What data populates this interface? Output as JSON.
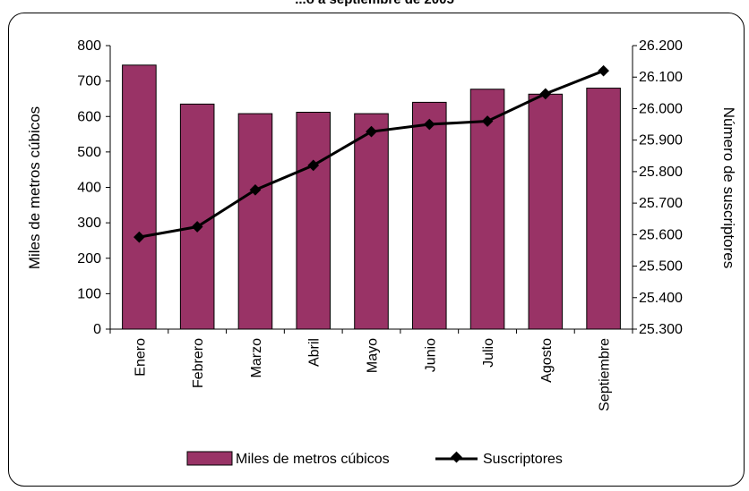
{
  "chart_data": {
    "type": "bar",
    "title": "...o a septiembre de 2005",
    "categories": [
      "Enero",
      "Febrero",
      "Marzo",
      "Abril",
      "Mayo",
      "Junio",
      "Julio",
      "Agosto",
      "Septiembre"
    ],
    "series": [
      {
        "name": "Miles de metros cúbicos",
        "type": "bar",
        "axis": "left",
        "color": "#993366",
        "values": [
          745,
          635,
          608,
          612,
          608,
          640,
          677,
          663,
          680
        ]
      },
      {
        "name": "Suscriptores",
        "type": "line",
        "axis": "right",
        "color": "#000000",
        "values": [
          25592,
          25625,
          25742,
          25820,
          25927,
          25950,
          25960,
          26047,
          26120
        ]
      }
    ],
    "ylabel": "Miles de metros cúbicos",
    "ylabel_right": "Número de suscriptores",
    "xlabel": "",
    "ylim": [
      0,
      800
    ],
    "ylim_right": [
      25300,
      26200
    ],
    "yticks": [
      "0",
      "100",
      "200",
      "300",
      "400",
      "500",
      "600",
      "700",
      "800"
    ],
    "yticks_right": [
      "25.300",
      "25.400",
      "25.500",
      "25.600",
      "25.700",
      "25.800",
      "25.900",
      "26.000",
      "26.100",
      "26.200"
    ],
    "grid": false,
    "legend_position": "bottom"
  }
}
